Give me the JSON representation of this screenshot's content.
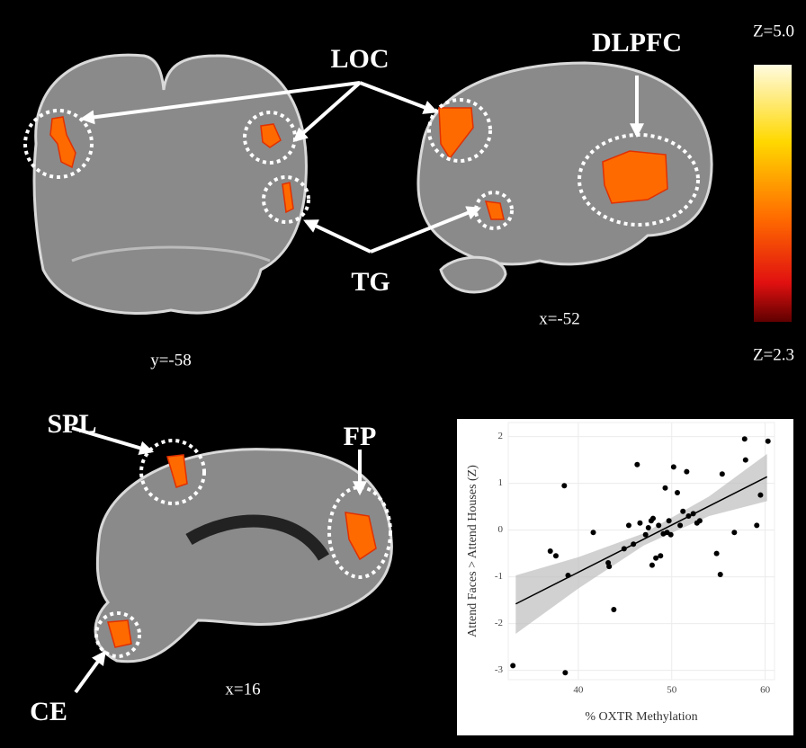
{
  "labels": {
    "loc": "LOC",
    "dlpfc": "DLPFC",
    "tg": "TG",
    "spl": "SPL",
    "fp": "FP",
    "ce": "CE"
  },
  "coords": [
    "y=-58",
    "x=-52",
    "x=16"
  ],
  "colorbar": {
    "max_label": "Z=5.0",
    "min_label": "Z=2.3"
  },
  "chart_data": {
    "type": "scatter",
    "x_label": "% OXTR Methylation",
    "y_label": "Attend Faces > Attend Houses (Z)",
    "x": [
      33.0,
      38.6,
      37.0,
      37.6,
      38.5,
      38.9,
      41.6,
      43.2,
      43.3,
      43.8,
      44.9,
      45.4,
      45.9,
      46.3,
      46.6,
      47.2,
      47.5,
      47.8,
      47.9,
      48.0,
      48.3,
      48.6,
      48.8,
      49.1,
      49.3,
      49.5,
      49.7,
      49.9,
      50.2,
      50.6,
      50.9,
      51.2,
      51.6,
      51.8,
      52.3,
      52.7,
      53.0,
      54.8,
      55.2,
      55.4,
      56.7,
      57.8,
      57.9,
      59.1,
      59.5,
      60.3
    ],
    "values": [
      -2.9,
      -3.05,
      -0.45,
      -0.55,
      0.95,
      -0.97,
      -0.05,
      -0.7,
      -0.78,
      -1.7,
      -0.4,
      0.1,
      -0.3,
      1.4,
      0.15,
      -0.1,
      0.05,
      0.2,
      -0.75,
      0.25,
      -0.6,
      0.1,
      -0.55,
      -0.08,
      0.9,
      -0.05,
      0.2,
      -0.1,
      1.35,
      0.8,
      0.1,
      0.4,
      1.25,
      0.3,
      0.35,
      0.15,
      0.2,
      -0.5,
      -0.95,
      1.2,
      -0.05,
      1.95,
      1.5,
      0.1,
      0.75,
      1.9
    ],
    "color": "#000000",
    "fit": {
      "x": [
        33.3,
        60.2
      ],
      "y": [
        -1.58,
        1.14
      ],
      "color": "#000000"
    },
    "band": {
      "x": [
        33.3,
        40,
        47,
        54,
        60.2
      ],
      "lower": [
        -2.22,
        -1.25,
        -0.33,
        0.3,
        0.62
      ],
      "upper": [
        -0.97,
        -0.58,
        -0.07,
        0.72,
        1.63
      ],
      "color": "#bdbdbd"
    },
    "xlim": [
      32.5,
      61
    ],
    "ylim": [
      -3.2,
      2.3
    ],
    "xticks": [
      40,
      50,
      60
    ],
    "yticks": [
      -3,
      -2,
      -1,
      0,
      1,
      2
    ],
    "grid": true
  }
}
